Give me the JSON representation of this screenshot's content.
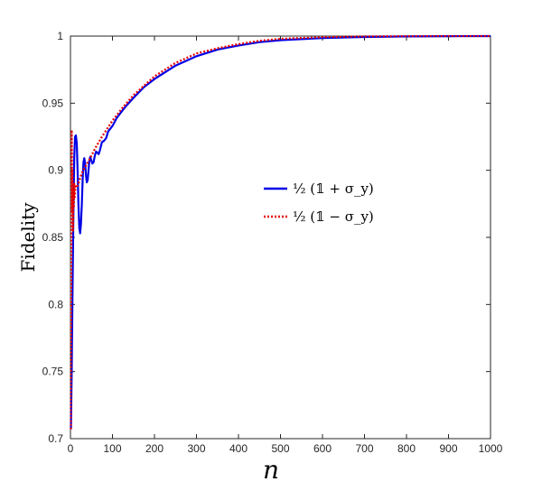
{
  "chart_data": {
    "type": "line",
    "xlabel": "n",
    "ylabel": "Fidelity",
    "xlim": [
      0,
      1000
    ],
    "ylim": [
      0.7,
      1.0
    ],
    "xticks": [
      "0",
      "100",
      "200",
      "300",
      "400",
      "500",
      "600",
      "700",
      "800",
      "900",
      "1000"
    ],
    "yticks": [
      "0.7",
      "0.75",
      "0.8",
      "0.85",
      "0.9",
      "0.95",
      "1"
    ],
    "grid": false,
    "legend_position": "center-right",
    "series": [
      {
        "name": "½ (𝟙 + σ_y)",
        "color": "#0000e6",
        "style": "solid",
        "x": [
          1,
          3,
          5,
          7,
          9,
          11,
          13,
          15,
          17,
          19,
          21,
          23,
          25,
          27,
          29,
          31,
          33,
          35,
          37,
          39,
          41,
          43,
          45,
          47,
          49,
          52,
          55,
          58,
          61,
          64,
          67,
          70,
          75,
          80,
          85,
          90,
          100,
          110,
          120,
          130,
          150,
          175,
          200,
          250,
          300,
          350,
          400,
          450,
          500,
          600,
          700,
          800,
          900,
          1000
        ],
        "y": [
          0.707,
          0.75,
          0.81,
          0.87,
          0.91,
          0.925,
          0.926,
          0.92,
          0.9,
          0.875,
          0.857,
          0.853,
          0.86,
          0.875,
          0.893,
          0.906,
          0.909,
          0.905,
          0.896,
          0.891,
          0.893,
          0.9,
          0.907,
          0.91,
          0.908,
          0.905,
          0.906,
          0.911,
          0.914,
          0.913,
          0.912,
          0.915,
          0.921,
          0.922,
          0.924,
          0.929,
          0.933,
          0.939,
          0.943,
          0.947,
          0.954,
          0.962,
          0.968,
          0.978,
          0.985,
          0.99,
          0.993,
          0.9955,
          0.997,
          0.9985,
          0.9993,
          0.9997,
          0.9999,
          1.0
        ]
      },
      {
        "name": "½ (𝟙 − σ_y)",
        "color": "#e60000",
        "style": "dotted",
        "x": [
          1,
          2,
          3,
          4,
          5,
          6,
          7,
          8,
          9,
          10,
          12,
          14,
          16,
          20,
          25,
          30,
          40,
          50,
          60,
          75,
          100,
          125,
          150,
          175,
          200,
          250,
          300,
          350,
          400,
          450,
          500,
          600,
          700,
          800,
          900,
          1000
        ],
        "y": [
          0.707,
          0.8,
          0.93,
          0.87,
          0.9,
          0.855,
          0.886,
          0.872,
          0.89,
          0.88,
          0.888,
          0.887,
          0.888,
          0.891,
          0.896,
          0.9,
          0.905,
          0.911,
          0.917,
          0.925,
          0.937,
          0.947,
          0.956,
          0.963,
          0.97,
          0.98,
          0.987,
          0.991,
          0.994,
          0.9965,
          0.998,
          0.9992,
          0.9997,
          0.9999,
          1.0,
          1.0
        ]
      }
    ]
  }
}
